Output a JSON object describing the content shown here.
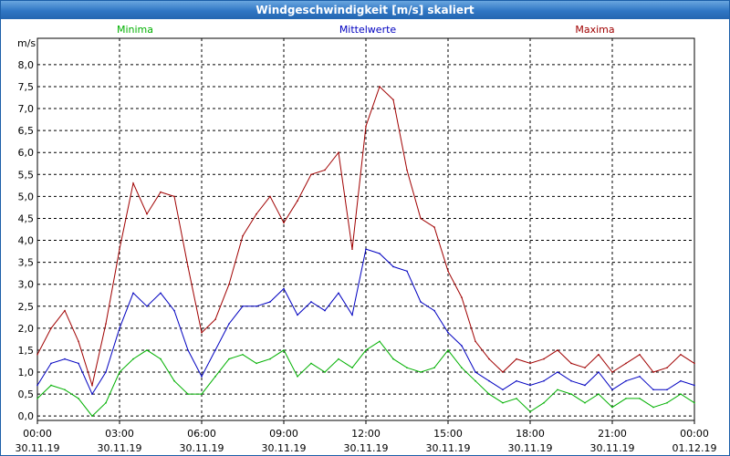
{
  "window": {
    "title": "Windgeschwindigkeit [m/s] skaliert"
  },
  "chart_data": {
    "type": "line",
    "title": "Windgeschwindigkeit [m/s] skaliert",
    "ylabel": "m/s",
    "xlabel": "",
    "ylim": [
      -0.1,
      8.6
    ],
    "xlim": [
      0,
      24
    ],
    "grid": true,
    "yticks": [
      "0,0",
      "0,5",
      "1,0",
      "1,5",
      "2,0",
      "2,5",
      "3,0",
      "3,5",
      "4,0",
      "4,5",
      "5,0",
      "5,5",
      "6,0",
      "6,5",
      "7,0",
      "7,5",
      "8,0"
    ],
    "xticks": [
      {
        "time": "00:00",
        "date": "30.11.19"
      },
      {
        "time": "03:00",
        "date": "30.11.19"
      },
      {
        "time": "06:00",
        "date": "30.11.19"
      },
      {
        "time": "09:00",
        "date": "30.11.19"
      },
      {
        "time": "12:00",
        "date": "30.11.19"
      },
      {
        "time": "15:00",
        "date": "30.11.19"
      },
      {
        "time": "18:00",
        "date": "30.11.19"
      },
      {
        "time": "21:00",
        "date": "30.11.19"
      },
      {
        "time": "00:00",
        "date": "01.12.19"
      }
    ],
    "legend": [
      "Minima",
      "Mittelwerte",
      "Maxima"
    ],
    "colors": {
      "min": "#00b000",
      "mean": "#0000c0",
      "max": "#a00000"
    },
    "x": [
      0,
      0.5,
      1,
      1.5,
      2,
      2.5,
      3,
      3.5,
      4,
      4.5,
      5,
      5.5,
      6,
      6.5,
      7,
      7.5,
      8,
      8.5,
      9,
      9.5,
      10,
      10.5,
      11,
      11.5,
      12,
      12.5,
      13,
      13.5,
      14,
      14.5,
      15,
      15.5,
      16,
      16.5,
      17,
      17.5,
      18,
      18.5,
      19,
      19.5,
      20,
      20.5,
      21,
      21.5,
      22,
      22.5,
      23,
      23.5,
      24
    ],
    "series": [
      {
        "name": "Minima",
        "values": [
          0.4,
          0.7,
          0.6,
          0.4,
          0.0,
          0.3,
          1.0,
          1.3,
          1.5,
          1.3,
          0.8,
          0.5,
          0.5,
          0.9,
          1.3,
          1.4,
          1.2,
          1.3,
          1.5,
          0.9,
          1.2,
          1.0,
          1.3,
          1.1,
          1.5,
          1.7,
          1.3,
          1.1,
          1.0,
          1.1,
          1.5,
          1.1,
          0.8,
          0.5,
          0.3,
          0.4,
          0.1,
          0.3,
          0.6,
          0.5,
          0.3,
          0.5,
          0.2,
          0.4,
          0.4,
          0.2,
          0.3,
          0.5,
          0.3
        ]
      },
      {
        "name": "Mittelwerte",
        "values": [
          0.7,
          1.2,
          1.3,
          1.2,
          0.5,
          1.0,
          2.0,
          2.8,
          2.5,
          2.8,
          2.4,
          1.5,
          0.9,
          1.5,
          2.1,
          2.5,
          2.5,
          2.6,
          2.9,
          2.3,
          2.6,
          2.4,
          2.8,
          2.3,
          3.8,
          3.7,
          3.4,
          3.3,
          2.6,
          2.4,
          1.9,
          1.6,
          1.0,
          0.8,
          0.6,
          0.8,
          0.7,
          0.8,
          1.0,
          0.8,
          0.7,
          1.0,
          0.6,
          0.8,
          0.9,
          0.6,
          0.6,
          0.8,
          0.7
        ]
      },
      {
        "name": "Maxima",
        "values": [
          1.4,
          2.0,
          2.4,
          1.7,
          0.7,
          2.1,
          3.8,
          5.3,
          4.6,
          5.1,
          5.0,
          3.4,
          1.9,
          2.2,
          3.0,
          4.1,
          4.6,
          5.0,
          4.4,
          4.9,
          5.5,
          5.6,
          6.0,
          3.8,
          6.6,
          7.5,
          7.2,
          5.6,
          4.5,
          4.3,
          3.3,
          2.7,
          1.7,
          1.3,
          1.0,
          1.3,
          1.2,
          1.3,
          1.5,
          1.2,
          1.1,
          1.4,
          1.0,
          1.2,
          1.4,
          1.0,
          1.1,
          1.4,
          1.2
        ]
      }
    ]
  }
}
